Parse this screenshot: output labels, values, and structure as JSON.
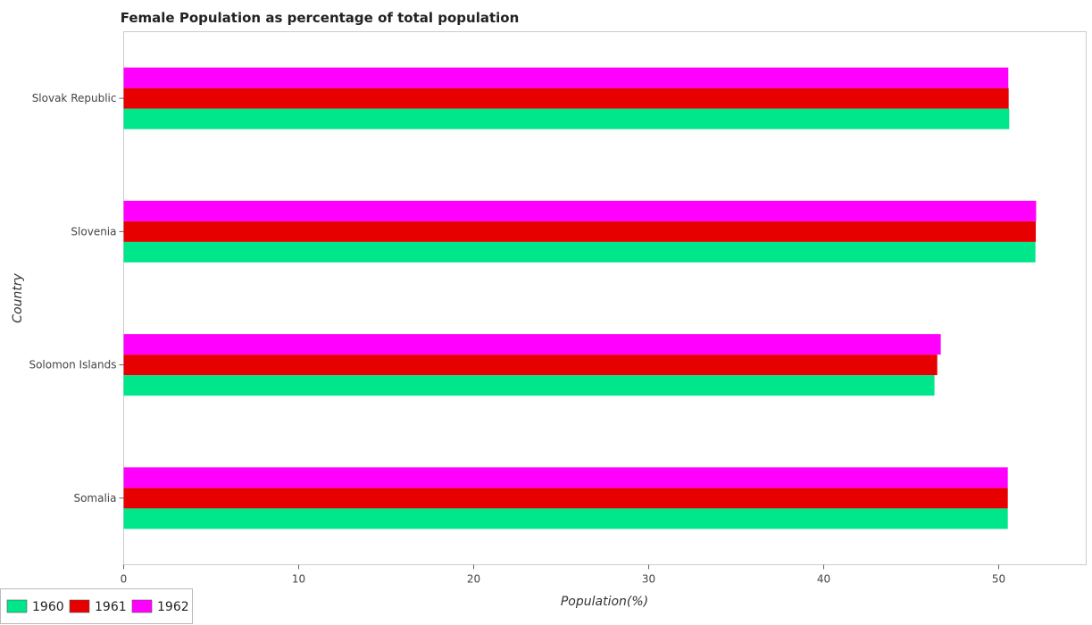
{
  "chart_data": {
    "type": "bar",
    "orientation": "horizontal",
    "title": "Female Population as percentage of total population",
    "xlabel": "Population(%)",
    "ylabel": "Country",
    "xlim": [
      0,
      55
    ],
    "xticks": [
      0,
      10,
      20,
      30,
      40,
      50
    ],
    "categories": [
      "Slovak Republic",
      "Slovenia",
      "Solomon Islands",
      "Somalia"
    ],
    "series": [
      {
        "name": "1960",
        "color": "#00e68a",
        "values": [
          50.6,
          52.1,
          46.33,
          50.52
        ]
      },
      {
        "name": "1961",
        "color": "#e60000",
        "values": [
          50.57,
          52.12,
          46.49,
          50.52
        ]
      },
      {
        "name": "1962",
        "color": "#ff00ff",
        "values": [
          50.55,
          52.14,
          46.69,
          50.52
        ]
      }
    ],
    "grid": false,
    "legend_position": "bottom-left"
  }
}
